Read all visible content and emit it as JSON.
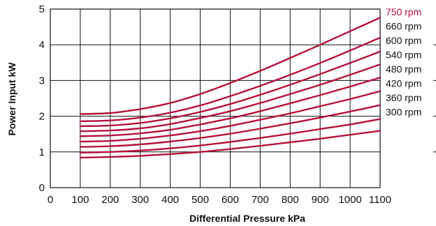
{
  "chart_data": {
    "type": "line",
    "title": "",
    "xlabel": "Differential Pressure kPa",
    "ylabel": "Power Input kW",
    "xlim": [
      0,
      1100
    ],
    "ylim": [
      0,
      5
    ],
    "x_ticks": [
      0,
      100,
      200,
      300,
      400,
      500,
      600,
      700,
      800,
      900,
      1000,
      1100
    ],
    "y_ticks": [
      0,
      1,
      2,
      3,
      4,
      5
    ],
    "grid": true,
    "legend": "right",
    "line_color": "#b5123a",
    "text_color": "#111111",
    "x": [
      100,
      200,
      300,
      400,
      500,
      600,
      700,
      800,
      900,
      1000,
      1100
    ],
    "series": [
      {
        "name": "750 rpm",
        "values": [
          2.06,
          2.09,
          2.2,
          2.37,
          2.62,
          2.93,
          3.27,
          3.63,
          4.0,
          4.38,
          4.76
        ]
      },
      {
        "name": "660 rpm",
        "values": [
          1.86,
          1.88,
          1.96,
          2.1,
          2.3,
          2.56,
          2.85,
          3.16,
          3.49,
          3.84,
          4.2
        ]
      },
      {
        "name": "600 rpm",
        "values": [
          1.72,
          1.74,
          1.81,
          1.94,
          2.12,
          2.34,
          2.6,
          2.88,
          3.18,
          3.49,
          3.81
        ]
      },
      {
        "name": "540 rpm",
        "values": [
          1.58,
          1.6,
          1.66,
          1.78,
          1.95,
          2.14,
          2.37,
          2.62,
          2.88,
          3.16,
          3.45
        ]
      },
      {
        "name": "480 rpm",
        "values": [
          1.44,
          1.46,
          1.52,
          1.62,
          1.77,
          1.94,
          2.14,
          2.36,
          2.59,
          2.83,
          3.08
        ]
      },
      {
        "name": "420 rpm",
        "values": [
          1.29,
          1.31,
          1.37,
          1.46,
          1.58,
          1.73,
          1.9,
          2.08,
          2.28,
          2.48,
          2.7
        ]
      },
      {
        "name": "360 rpm",
        "values": [
          1.14,
          1.16,
          1.21,
          1.29,
          1.39,
          1.51,
          1.65,
          1.8,
          1.96,
          2.13,
          2.31
        ]
      },
      {
        "name": "300 rpm",
        "values": [
          0.98,
          1.0,
          1.04,
          1.1,
          1.18,
          1.28,
          1.39,
          1.51,
          1.64,
          1.77,
          1.92
        ]
      },
      {
        "name": "",
        "values": [
          0.84,
          0.86,
          0.89,
          0.94,
          1.0,
          1.08,
          1.17,
          1.27,
          1.37,
          1.48,
          1.59
        ]
      }
    ],
    "highlighted_label": "750 rpm"
  }
}
